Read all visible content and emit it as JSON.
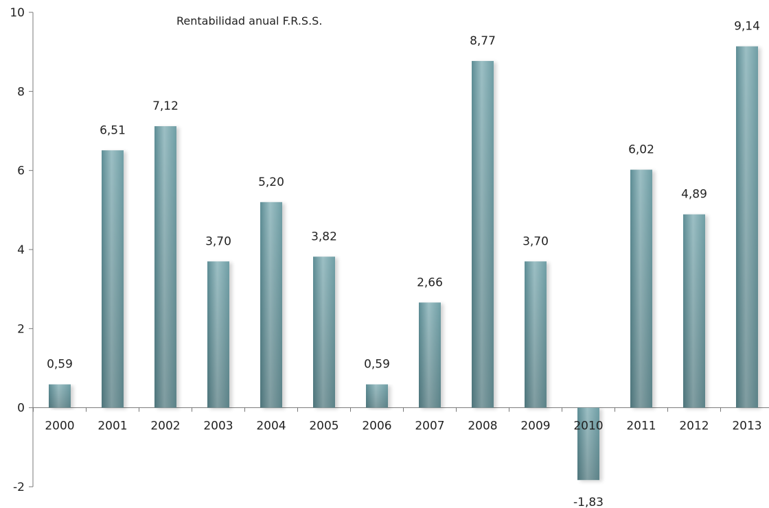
{
  "chart_data": {
    "type": "bar",
    "title": "Rentabilidad anual F.R.S.S.",
    "xlabel": "",
    "ylabel": "",
    "ylim": [
      -2,
      10
    ],
    "yticks": [
      -2,
      0,
      2,
      4,
      6,
      8,
      10
    ],
    "grid": false,
    "categories": [
      "2000",
      "2001",
      "2002",
      "2003",
      "2004",
      "2005",
      "2006",
      "2007",
      "2008",
      "2009",
      "2010",
      "2011",
      "2012",
      "2013"
    ],
    "values": [
      0.59,
      6.51,
      7.12,
      3.7,
      5.2,
      3.82,
      0.59,
      2.66,
      8.77,
      3.7,
      -1.83,
      6.02,
      4.89,
      9.14
    ],
    "data_labels": [
      "0,59",
      "6,51",
      "7,12",
      "3,70",
      "5,20",
      "3,82",
      "0,59",
      "2,66",
      "8,77",
      "3,70",
      "-1,83",
      "6,02",
      "4,89",
      "9,14"
    ],
    "colors": {
      "bar_light": "#a9c6cb",
      "bar_mid": "#7fa9b0",
      "bar_dark": "#4f8189",
      "axis": "#777777",
      "text": "#222222"
    }
  }
}
